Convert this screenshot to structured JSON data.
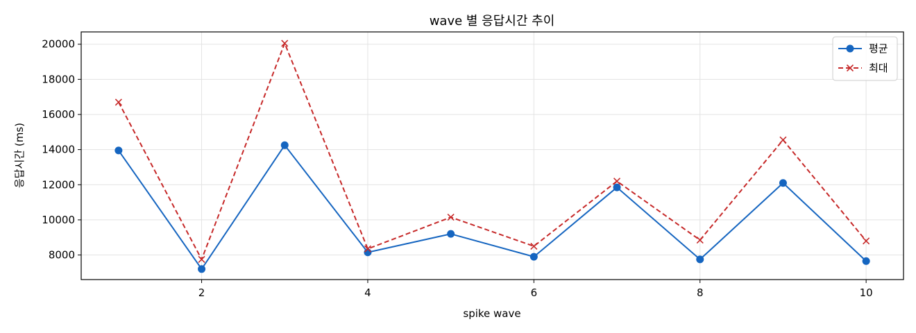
{
  "chart_data": {
    "type": "line",
    "title": "wave 별 응답시간 추이",
    "xlabel": "spike wave",
    "ylabel": "응답시간 (ms)",
    "x": [
      1,
      2,
      3,
      4,
      5,
      6,
      7,
      8,
      9,
      10
    ],
    "xlim": [
      0.55,
      10.45
    ],
    "ylim": [
      6600,
      20700
    ],
    "xticks": [
      2,
      4,
      6,
      8,
      10
    ],
    "yticks": [
      8000,
      10000,
      12000,
      14000,
      16000,
      18000,
      20000
    ],
    "grid": true,
    "legend_position": "top-right",
    "series": [
      {
        "name": "평균",
        "color": "#1565c0",
        "line_style": "solid",
        "marker": "circle",
        "values": [
          13950,
          7200,
          14250,
          8150,
          9200,
          7900,
          11850,
          7750,
          12100,
          7650
        ]
      },
      {
        "name": "최대",
        "color": "#c62828",
        "line_style": "dashed",
        "marker": "x",
        "values": [
          16700,
          7750,
          20050,
          8350,
          10150,
          8500,
          12200,
          8850,
          14550,
          8800
        ]
      }
    ]
  }
}
